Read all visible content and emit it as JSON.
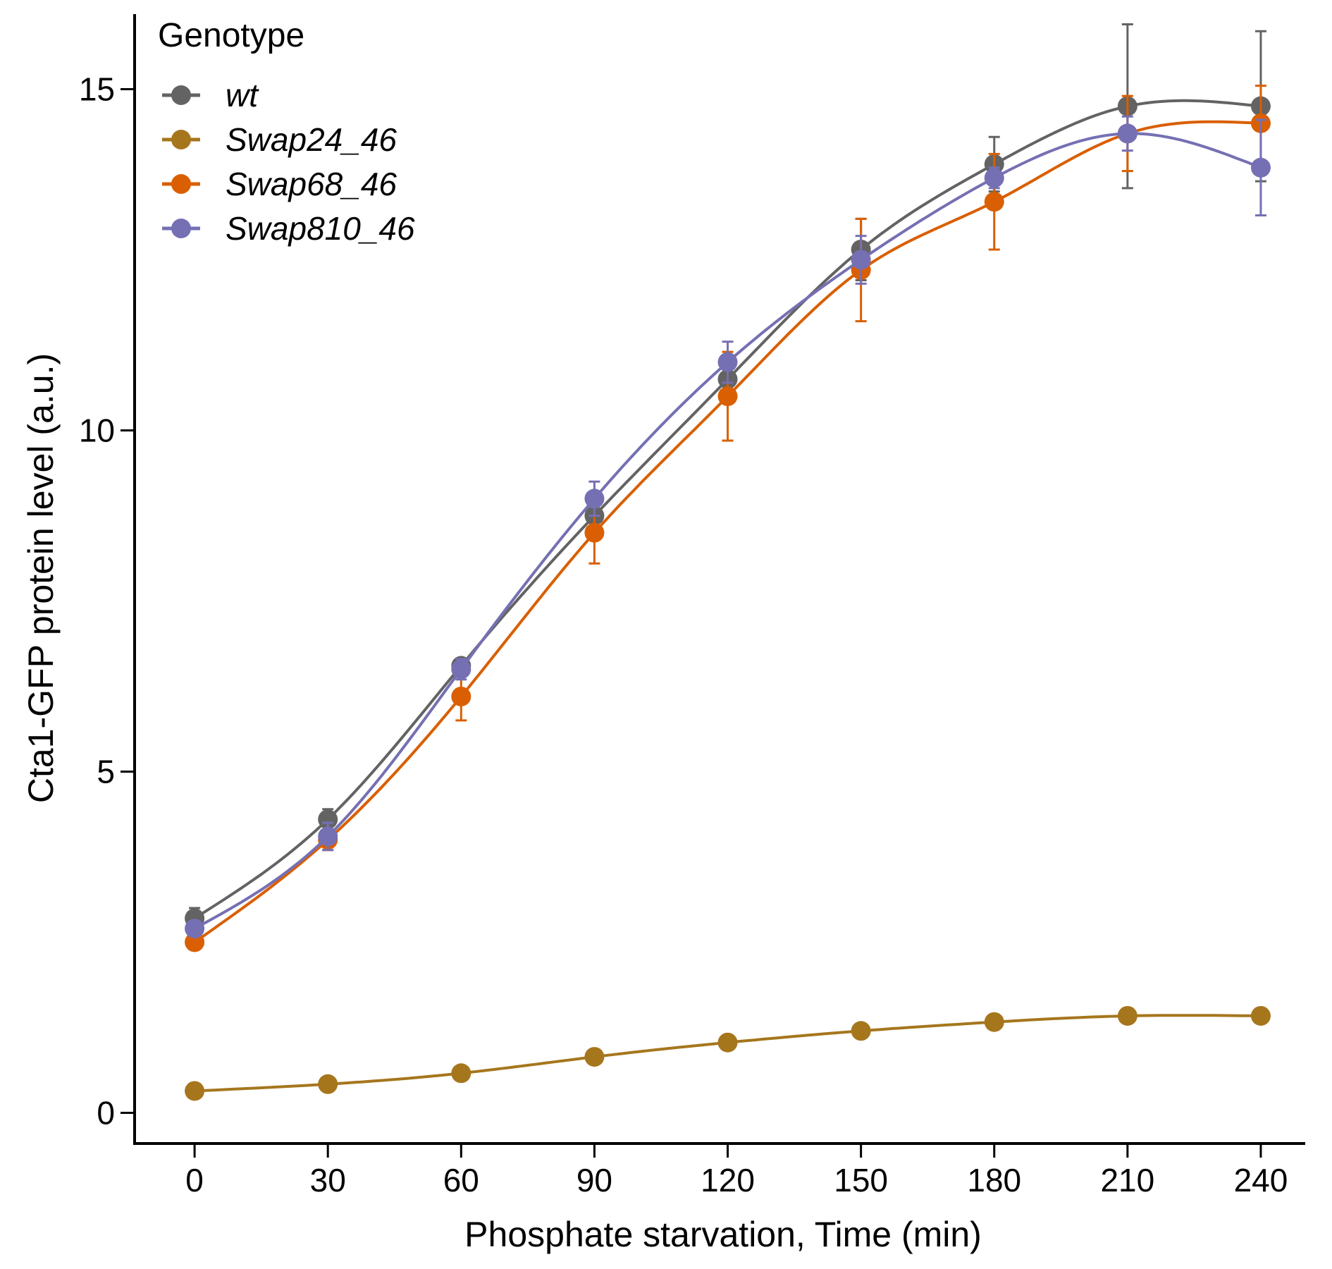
{
  "chart_data": {
    "type": "line",
    "title": "",
    "xlabel": "Phosphate starvation, Time (min)",
    "ylabel": "Cta1-GFP protein level (a.u.)",
    "x": [
      0,
      30,
      60,
      90,
      120,
      150,
      180,
      210,
      240
    ],
    "x_ticks": [
      "0",
      "30",
      "60",
      "90",
      "120",
      "150",
      "180",
      "210",
      "240"
    ],
    "y_ticks": [
      "0",
      "5",
      "10",
      "15"
    ],
    "xlim": [
      -13.5,
      250
    ],
    "ylim": [
      -0.45,
      16.1
    ],
    "grid": false,
    "legend": {
      "title": "Genotype",
      "position": "top-left"
    },
    "series": [
      {
        "name": "wt",
        "color": "#636363",
        "values": [
          2.85,
          4.3,
          6.55,
          8.75,
          10.75,
          12.65,
          13.9,
          14.75,
          14.75
        ],
        "errors": [
          0.15,
          0.15,
          0.1,
          0.15,
          0.25,
          0.45,
          0.4,
          1.2,
          1.1
        ]
      },
      {
        "name": "Swap24_46",
        "color": "#A6761D",
        "values": [
          0.32,
          0.42,
          0.58,
          0.82,
          1.03,
          1.2,
          1.33,
          1.42,
          1.42
        ],
        "errors": [
          0.02,
          0.02,
          0.03,
          0.03,
          0.04,
          0.04,
          0.05,
          0.05,
          0.05
        ]
      },
      {
        "name": "Swap68_46",
        "color": "#D95F02",
        "values": [
          2.5,
          4.0,
          6.1,
          8.5,
          10.5,
          12.35,
          13.35,
          14.35,
          14.5
        ],
        "errors": [
          0.1,
          0.15,
          0.35,
          0.45,
          0.65,
          0.75,
          0.7,
          0.55,
          0.55
        ]
      },
      {
        "name": "Swap810_46",
        "color": "#7570B3",
        "values": [
          2.7,
          4.05,
          6.5,
          9.0,
          11.0,
          12.5,
          13.7,
          14.35,
          13.85
        ],
        "errors": [
          0.1,
          0.2,
          0.15,
          0.25,
          0.3,
          0.35,
          0.15,
          0.25,
          0.7
        ]
      }
    ]
  }
}
